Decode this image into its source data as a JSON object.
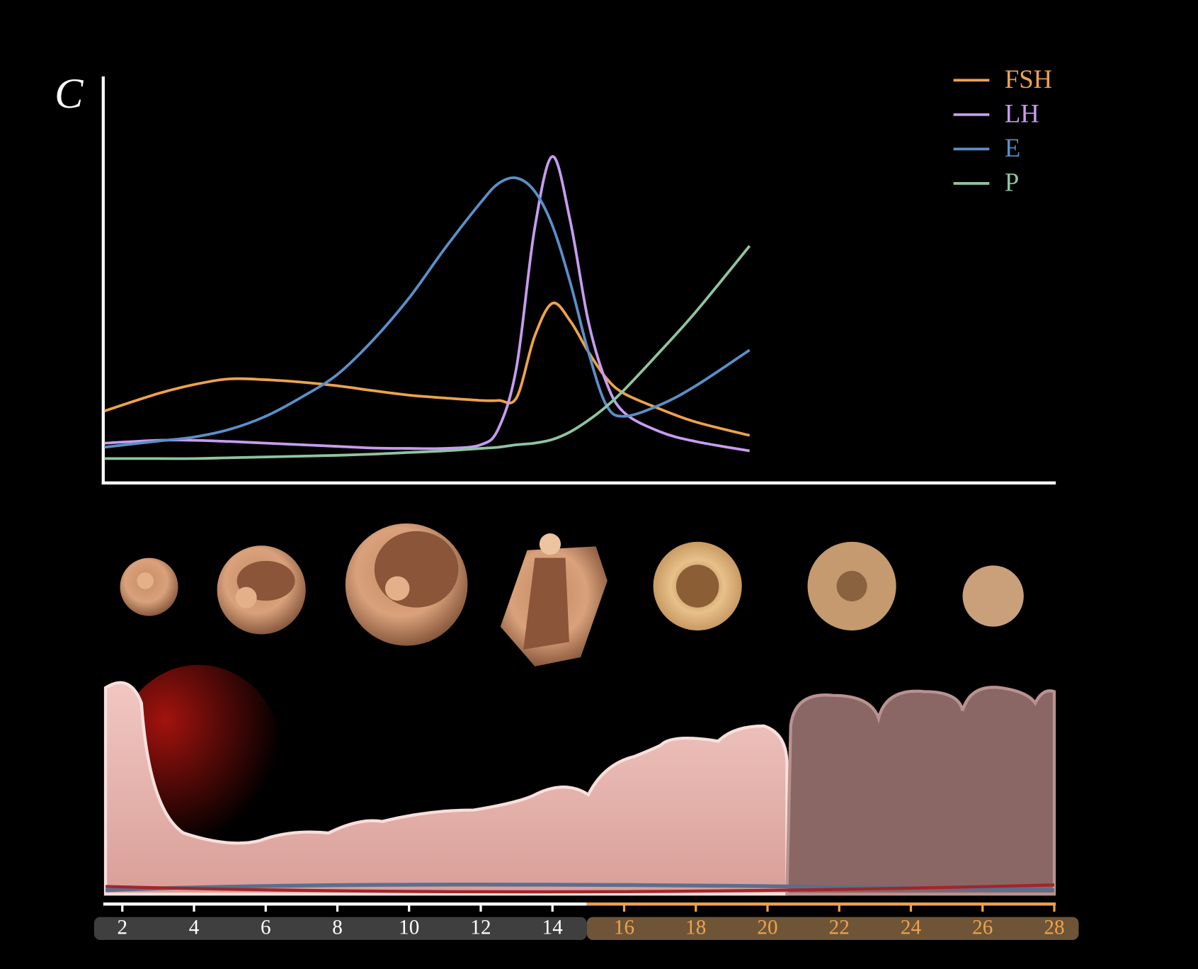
{
  "chart_data": {
    "type": "line",
    "ylabel": "C",
    "x": [
      1.5,
      3,
      4,
      5,
      6,
      7,
      8,
      9,
      10,
      11,
      12,
      12.5,
      13,
      13.5,
      14,
      14.5,
      15,
      15.5,
      16,
      17,
      18,
      19.5
    ],
    "series": [
      {
        "name": "FSH",
        "color": "#eea24c",
        "values": [
          17.7,
          22,
          24.2,
          25.6,
          25.4,
          24.8,
          23.9,
          22.7,
          21.6,
          20.9,
          20.3,
          20.3,
          21,
          36,
          44.2,
          39.8,
          32.3,
          25.8,
          22,
          18.2,
          15,
          11.7
        ]
      },
      {
        "name": "LH",
        "color": "#c79cf0",
        "values": [
          9.8,
          10.5,
          10.5,
          10.2,
          9.8,
          9.4,
          9,
          8.6,
          8.5,
          8.5,
          9.4,
          13.5,
          28.6,
          62.4,
          80.3,
          64.3,
          39.8,
          24.8,
          17.3,
          12.6,
          10.2,
          7.9
        ]
      },
      {
        "name": "E",
        "color": "#5b8fc9",
        "values": [
          8.8,
          10.3,
          11.3,
          13.2,
          16.4,
          21.1,
          26.7,
          35.2,
          45.5,
          57.7,
          69,
          73.7,
          75,
          71.8,
          63.3,
          49.2,
          32.3,
          19.2,
          16.4,
          19.2,
          23.9,
          32.7
        ]
      },
      {
        "name": "P",
        "color": "#8fc4a0",
        "values": [
          6,
          6,
          6,
          6.2,
          6.4,
          6.6,
          6.8,
          7.1,
          7.5,
          7.9,
          8.5,
          8.8,
          9.4,
          9.8,
          10.7,
          12.6,
          15.4,
          18.8,
          22.9,
          32.3,
          42.1,
          58.3
        ]
      }
    ],
    "xlim": [
      1.5,
      28
    ],
    "xticks": [
      2,
      4,
      6,
      8,
      10,
      12,
      14,
      16,
      18,
      20,
      22,
      24,
      26,
      28
    ],
    "ylim": [
      0,
      100
    ],
    "legend": "top-right"
  }
}
